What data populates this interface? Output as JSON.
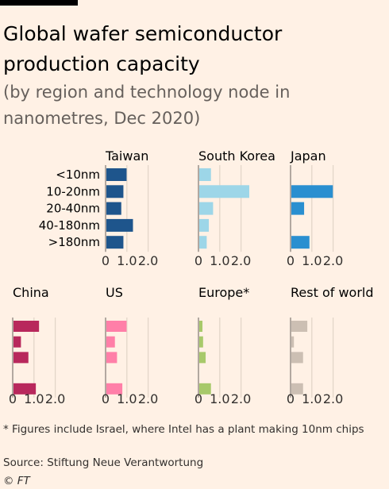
{
  "title": "Global wafer semiconductor production capacity",
  "subtitle": "(by region and technology node in nanometres, Dec 2020)",
  "footnote": "* Figures include Israel, where Intel has a plant making 10nm chips",
  "source": "Source: Stiftung Neue Verantwortung",
  "credit": "© FT",
  "chart_data": {
    "type": "bar",
    "orientation": "horizontal",
    "categories": [
      "<10nm",
      "10-20nm",
      "20-40nm",
      "40-180nm",
      ">180nm"
    ],
    "xlim": [
      0,
      2.5
    ],
    "xticks": [
      0,
      1.0,
      2.0
    ],
    "xtick_labels": [
      "0",
      "1.0",
      "2.0"
    ],
    "grid": true,
    "panels": [
      {
        "name": "Taiwan",
        "color": "#1e558c",
        "values": [
          0.95,
          0.8,
          0.7,
          1.25,
          0.8
        ]
      },
      {
        "name": "South Korea",
        "color": "#9dd6e8",
        "values": [
          0.55,
          2.35,
          0.65,
          0.45,
          0.35
        ]
      },
      {
        "name": "Japan",
        "color": "#2a8fd0",
        "values": [
          0,
          1.95,
          0.6,
          0,
          0.85
        ]
      },
      {
        "name": "China",
        "color": "#b8285c",
        "values": [
          1.2,
          0.35,
          0.7,
          0,
          1.05
        ]
      },
      {
        "name": "US",
        "color": "#ff7fa8",
        "values": [
          0.95,
          0.4,
          0.5,
          0,
          0.75
        ]
      },
      {
        "name": "Europe*",
        "color": "#a7c96a",
        "values": [
          0.15,
          0.18,
          0.3,
          0,
          0.55
        ]
      },
      {
        "name": "Rest of world",
        "color": "#ccbfb3",
        "values": [
          0.75,
          0.12,
          0.55,
          0,
          0.55
        ]
      }
    ]
  }
}
